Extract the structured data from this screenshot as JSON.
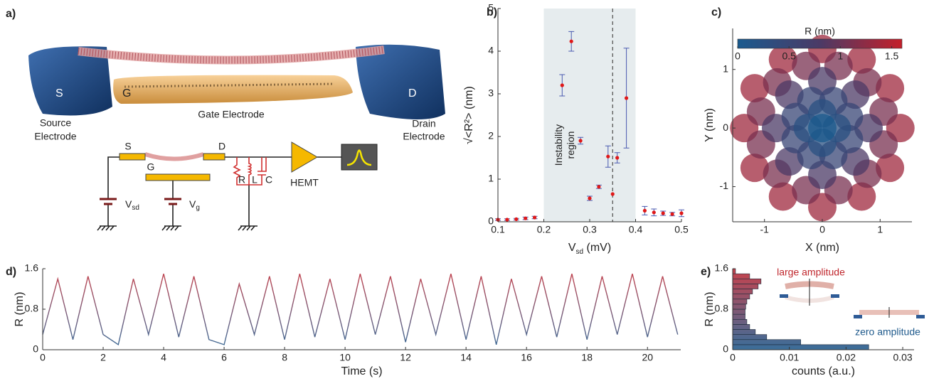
{
  "diagram": {
    "panel": "a)",
    "electrodes": {
      "source": "S",
      "gate": "G",
      "drain": "D"
    },
    "source_label": [
      "Source",
      "Electrode"
    ],
    "gate_label": "Gate Electrode",
    "drain_label": [
      "Drain",
      "Electrode"
    ],
    "circuit": {
      "source": "S",
      "drain": "D",
      "gate": "G",
      "r": "R",
      "l": "L",
      "c": "C",
      "amp": "HEMT",
      "vsd": [
        "V",
        "sd"
      ],
      "vg": [
        "V",
        "g"
      ]
    }
  },
  "chart_data": [
    {
      "type": "errorbar",
      "panel": "b)",
      "xlabel": [
        "V",
        "sd",
        " (mV)"
      ],
      "ylabel": "√<R²> (nm)",
      "x": [
        0.1,
        0.12,
        0.14,
        0.16,
        0.18,
        0.24,
        0.26,
        0.28,
        0.3,
        0.32,
        0.34,
        0.35,
        0.36,
        0.38,
        0.42,
        0.44,
        0.46,
        0.48,
        0.5
      ],
      "values": [
        0.05,
        0.05,
        0.06,
        0.08,
        0.1,
        3.2,
        4.23,
        1.9,
        0.55,
        0.82,
        1.53,
        0.65,
        1.5,
        2.9,
        0.26,
        0.22,
        0.2,
        0.18,
        0.2
      ],
      "errors": [
        0.02,
        0.02,
        0.02,
        0.03,
        0.03,
        0.25,
        0.23,
        0.08,
        0.05,
        0.04,
        0.25,
        0,
        0.12,
        1.17,
        0.1,
        0.08,
        0.05,
        0.04,
        0.08
      ],
      "color": "#e01818",
      "error_color": "#4a5ab0",
      "shade": [
        0.2,
        0.4
      ],
      "shade_color": "#e6ecee",
      "vline": 0.35,
      "annotation": [
        "Instability",
        "region"
      ],
      "xlim": [
        0.1,
        0.5
      ],
      "ylim": [
        0,
        5
      ],
      "xticks": [
        0.1,
        0.2,
        0.3,
        0.4,
        0.5
      ],
      "yticks": [
        0,
        1,
        2,
        3,
        4,
        5
      ]
    },
    {
      "type": "scatter",
      "panel": "c)",
      "xlabel": "X (nm)",
      "ylabel": "Y (nm)",
      "colorbar_title": "R (nm)",
      "clim": [
        0,
        1.6
      ],
      "colorbar_ticks": [
        0,
        0.5,
        1,
        1.5
      ],
      "colormap": [
        "#1a5a8e",
        "#4b3a66",
        "#c4202a"
      ],
      "x": [
        1.35,
        1.17,
        0.68,
        0,
        -0.68,
        -1.17,
        -1.35,
        -1.17,
        -0.68,
        0,
        0.68,
        1.17,
        1.06,
        0.78,
        0.28,
        -0.28,
        -0.78,
        -1.06,
        -1.06,
        -0.78,
        -0.28,
        0.28,
        0.78,
        1.06,
        0.8,
        0.57,
        0,
        -0.57,
        -0.8,
        -0.57,
        0,
        0.57,
        0.46,
        0.19,
        -0.19,
        -0.46,
        -0.46,
        -0.19,
        0.19,
        0.46,
        0.25,
        0,
        -0.25,
        0,
        0
      ],
      "y": [
        0,
        0.68,
        1.17,
        1.35,
        1.17,
        0.68,
        0,
        -0.68,
        -1.17,
        -1.35,
        -1.17,
        -0.68,
        0.28,
        0.78,
        1.06,
        1.06,
        0.78,
        0.28,
        -0.28,
        -0.78,
        -1.06,
        -1.06,
        -0.78,
        -0.28,
        0,
        0.57,
        0.8,
        0.57,
        0,
        -0.57,
        -0.8,
        -0.57,
        0.19,
        0.46,
        0.46,
        0.19,
        -0.19,
        -0.46,
        -0.46,
        -0.19,
        0,
        0.25,
        0,
        -0.25,
        0
      ],
      "xlim": [
        -1.55,
        1.55
      ],
      "ylim": [
        -1.6,
        1.7
      ],
      "xticks": [
        -1,
        0,
        1
      ],
      "yticks": [
        -1,
        0,
        1
      ]
    },
    {
      "type": "line",
      "panel": "d)",
      "xlabel": "Time (s)",
      "ylabel": "R (nm)",
      "x": [
        0,
        0.5,
        1,
        1.5,
        2,
        2.5,
        3,
        3.5,
        4,
        4.5,
        5,
        5.5,
        6,
        6.5,
        7,
        7.5,
        8,
        8.5,
        9,
        9.5,
        10,
        10.5,
        11,
        11.5,
        12,
        12.5,
        13,
        13.5,
        14,
        14.5,
        15,
        15.5,
        16,
        16.5,
        17,
        17.5,
        18,
        18.5,
        19,
        19.5,
        20,
        20.5,
        21
      ],
      "values": [
        0.3,
        1.4,
        0.2,
        1.45,
        0.3,
        0.1,
        1.4,
        0.3,
        1.5,
        0.25,
        1.45,
        0.2,
        0.1,
        1.3,
        0.3,
        1.45,
        0.2,
        1.5,
        0.25,
        1.4,
        0.2,
        1.5,
        0.3,
        1.45,
        0.15,
        1.4,
        0.3,
        1.5,
        0.2,
        1.45,
        0.1,
        1.4,
        0.3,
        1.45,
        0.25,
        1.5,
        0.2,
        1.45,
        0.3,
        1.5,
        0.25,
        1.45,
        0.3
      ],
      "colors": [
        "#3a6e9a",
        "#c8424c"
      ],
      "xlim": [
        0,
        21.1
      ],
      "ylim": [
        0,
        1.6
      ],
      "xticks": [
        0,
        2,
        4,
        6,
        8,
        10,
        12,
        14,
        16,
        18,
        20
      ],
      "yticks": [
        0,
        0.8,
        1.6
      ]
    },
    {
      "type": "histogram",
      "panel": "e)",
      "xlabel": "counts (a.u.)",
      "ylabel": "R (nm)",
      "bins": [
        0,
        0.1,
        0.2,
        0.3,
        0.4,
        0.5,
        0.6,
        0.7,
        0.8,
        0.9,
        1.0,
        1.1,
        1.2,
        1.3,
        1.4,
        1.5,
        1.6
      ],
      "values": [
        0.024,
        0.012,
        0.006,
        0.004,
        0.003,
        0.0025,
        0.0022,
        0.0022,
        0.0023,
        0.0025,
        0.003,
        0.0035,
        0.0045,
        0.005,
        0.003,
        0.0005
      ],
      "colors": [
        "#3a6e9a",
        "#c8424c"
      ],
      "annotations": [
        {
          "text": "large amplitude",
          "color": "#c0282e"
        },
        {
          "text": "zero amplitude",
          "color": "#1f5a8c"
        }
      ],
      "xlim": [
        0,
        0.032
      ],
      "ylim": [
        0,
        1.6
      ],
      "xticks": [
        0,
        0.01,
        0.02,
        0.03
      ],
      "yticks": [
        0,
        0.8,
        1.6
      ]
    }
  ]
}
